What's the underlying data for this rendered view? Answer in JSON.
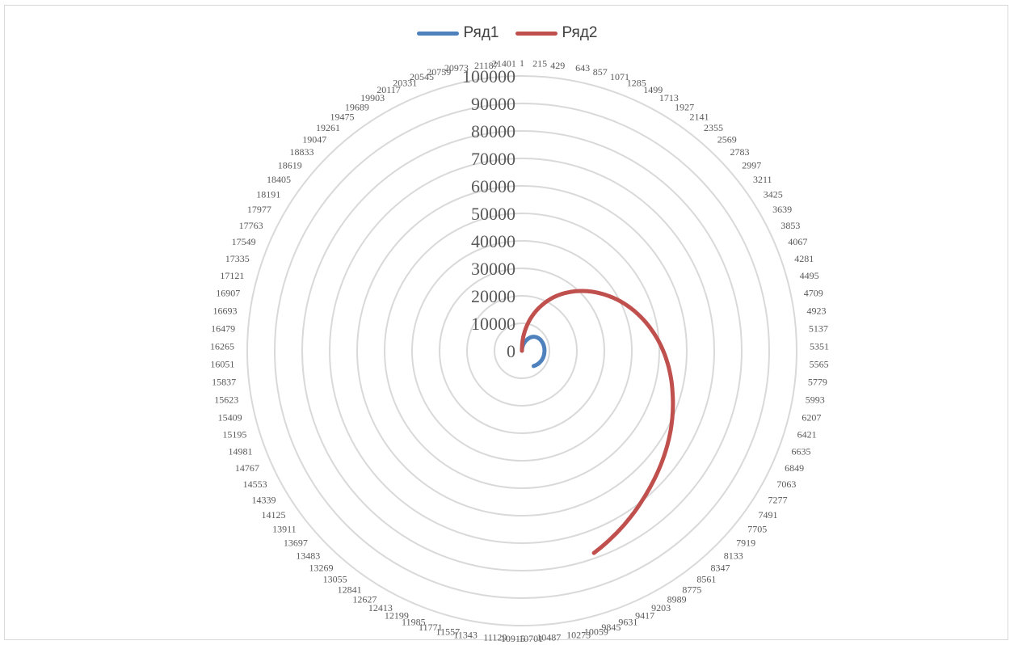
{
  "chart_data": {
    "type": "radar",
    "legend_placement": "top",
    "grid": true,
    "radial_axis": {
      "min": 0,
      "max": 100000,
      "step": 10000,
      "tick_labels": [
        "0",
        "10000",
        "20000",
        "30000",
        "40000",
        "50000",
        "60000",
        "70000",
        "80000",
        "90000",
        "100000"
      ]
    },
    "categories": {
      "first": 1,
      "step": 214,
      "count": 101,
      "last_label": 21401
    },
    "series": [
      {
        "name": "Ряд1",
        "color": "#4f81bd",
        "points": [
          [
            1,
            0
          ],
          [
            1071,
            3300
          ],
          [
            2141,
            6200
          ],
          [
            3211,
            7600
          ],
          [
            4281,
            8100
          ],
          [
            5351,
            8200
          ],
          [
            6421,
            8100
          ],
          [
            7491,
            7700
          ],
          [
            8561,
            7000
          ]
        ]
      },
      {
        "name": "Ряд2",
        "color": "#c0504d",
        "points": [
          [
            1,
            0
          ],
          [
            215,
            3500
          ],
          [
            643,
            9000
          ],
          [
            1071,
            14200
          ],
          [
            1499,
            19000
          ],
          [
            1927,
            23500
          ],
          [
            2355,
            27600
          ],
          [
            2783,
            31500
          ],
          [
            3211,
            35200
          ],
          [
            3853,
            40500
          ],
          [
            4495,
            45300
          ],
          [
            5137,
            49700
          ],
          [
            5779,
            53700
          ],
          [
            6421,
            57400
          ],
          [
            7063,
            61200
          ],
          [
            7705,
            65000
          ],
          [
            8347,
            69000
          ],
          [
            8989,
            73500
          ],
          [
            9631,
            78100
          ]
        ]
      }
    ]
  }
}
